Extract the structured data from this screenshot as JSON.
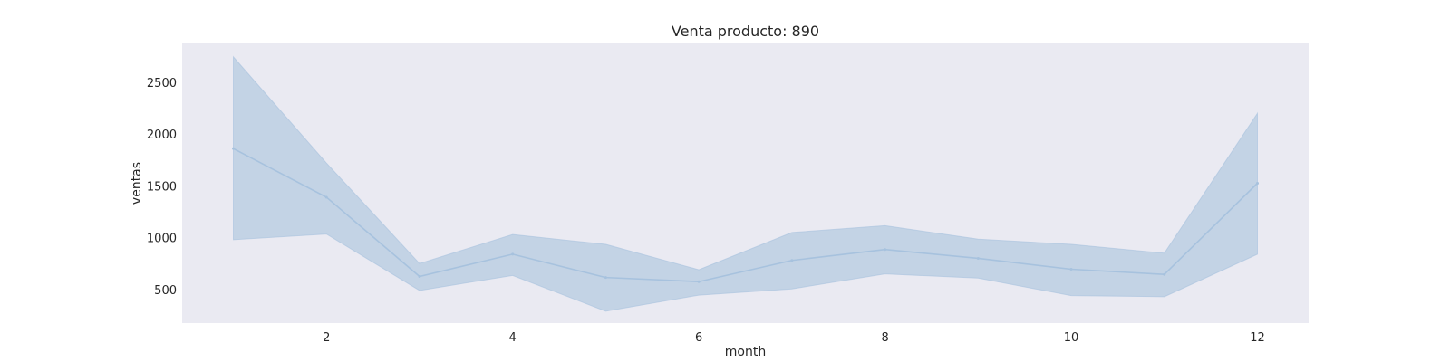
{
  "chart_data": {
    "type": "line",
    "title": "Venta producto: 890",
    "xlabel": "month",
    "ylabel": "ventas",
    "x": [
      1,
      2,
      3,
      4,
      5,
      6,
      7,
      8,
      9,
      10,
      11,
      12
    ],
    "series": [
      {
        "values": [
          1860,
          1390,
          625,
          840,
          615,
          575,
          780,
          885,
          800,
          695,
          645,
          1525
        ],
        "lower": [
          980,
          1035,
          490,
          635,
          290,
          445,
          505,
          650,
          610,
          440,
          430,
          840
        ],
        "upper": [
          2745,
          1720,
          750,
          1030,
          935,
          690,
          1050,
          1115,
          985,
          935,
          850,
          2200
        ],
        "color": "#a7c2de"
      }
    ],
    "xticks": [
      2,
      4,
      6,
      8,
      10,
      12
    ],
    "yticks": [
      500,
      1000,
      1500,
      2000,
      2500
    ],
    "xlim": [
      0.45,
      12.55
    ],
    "ylim": [
      175,
      2875
    ],
    "grid": false,
    "background": "#eaeaf2",
    "band_color": "#c3d3e5"
  }
}
